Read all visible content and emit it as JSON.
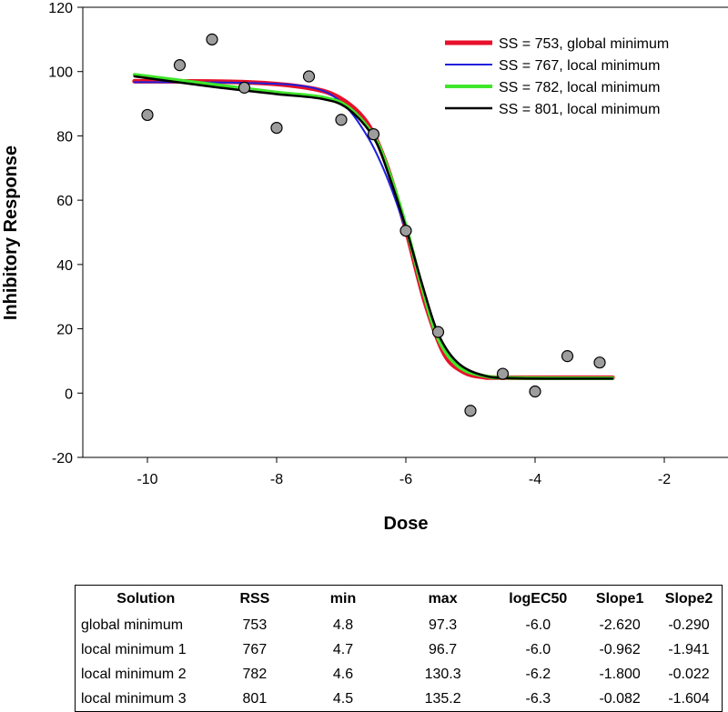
{
  "chart_data": {
    "type": "scatter",
    "xlabel": "Dose",
    "ylabel": "Inhibitory Response",
    "xlim": [
      -11,
      -1
    ],
    "ylim": [
      -20,
      120
    ],
    "x_ticks": [
      -10,
      -8,
      -6,
      -4,
      -2
    ],
    "y_ticks": [
      -20,
      0,
      20,
      40,
      60,
      80,
      100,
      120
    ],
    "legend_position": "top-right",
    "points": {
      "x": [
        -10,
        -9.5,
        -9,
        -8.5,
        -8,
        -7.5,
        -7,
        -6.5,
        -6,
        -5.5,
        -5,
        -4.5,
        -4,
        -3.5,
        -3
      ],
      "y": [
        86.5,
        102,
        110,
        95,
        82.5,
        98.5,
        85,
        80.5,
        50.5,
        19,
        -5.5,
        6,
        0.5,
        11.5,
        9.5
      ]
    },
    "series": [
      {
        "name": "SS = 753, global minimum",
        "color": "#e8102a",
        "width": 5,
        "curve": [
          [
            -10.2,
            97
          ],
          [
            -8.5,
            96.7
          ],
          [
            -7.5,
            94.9
          ],
          [
            -7,
            91.5
          ],
          [
            -6.6,
            84
          ],
          [
            -6.3,
            71
          ],
          [
            -6.0,
            51
          ],
          [
            -5.7,
            28
          ],
          [
            -5.4,
            12
          ],
          [
            -5.1,
            6.5
          ],
          [
            -4.8,
            5
          ],
          [
            -4.5,
            4.8
          ],
          [
            -2.8,
            4.8
          ]
        ]
      },
      {
        "name": "SS = 767, local  minimum",
        "color": "#1f1fdd",
        "width": 2,
        "curve": [
          [
            -10.2,
            96.7
          ],
          [
            -8.5,
            96.5
          ],
          [
            -7.5,
            95.2
          ],
          [
            -7,
            90.5
          ],
          [
            -6.6,
            80
          ],
          [
            -6.3,
            67.5
          ],
          [
            -6.0,
            50.5
          ],
          [
            -5.7,
            30
          ],
          [
            -5.4,
            14
          ],
          [
            -5.1,
            7.5
          ],
          [
            -4.8,
            5.3
          ],
          [
            -4.5,
            4.8
          ],
          [
            -2.8,
            4.7
          ]
        ]
      },
      {
        "name": "SS = 782, local minimum",
        "color": "#3fe62a",
        "width": 4,
        "curve": [
          [
            -10.2,
            99
          ],
          [
            -9,
            96
          ],
          [
            -8,
            93.5
          ],
          [
            -7.3,
            92
          ],
          [
            -6.9,
            89
          ],
          [
            -6.5,
            80
          ],
          [
            -6.25,
            68
          ],
          [
            -6.0,
            52
          ],
          [
            -5.75,
            33
          ],
          [
            -5.5,
            17
          ],
          [
            -5.2,
            8.5
          ],
          [
            -4.8,
            5.4
          ],
          [
            -4.3,
            4.7
          ],
          [
            -2.8,
            4.6
          ]
        ]
      },
      {
        "name": "SS = 801, local minimum",
        "color": "#000000",
        "width": 2.5,
        "curve": [
          [
            -10.2,
            98.5
          ],
          [
            -9,
            95.3
          ],
          [
            -8,
            93
          ],
          [
            -7.3,
            91.5
          ],
          [
            -6.9,
            88.5
          ],
          [
            -6.5,
            79.5
          ],
          [
            -6.25,
            67
          ],
          [
            -6.0,
            51.5
          ],
          [
            -5.75,
            34
          ],
          [
            -5.5,
            18.5
          ],
          [
            -5.2,
            9.5
          ],
          [
            -4.8,
            5.5
          ],
          [
            -4.3,
            4.6
          ],
          [
            -2.8,
            4.5
          ]
        ]
      }
    ]
  },
  "table": {
    "headers": [
      "Solution",
      "RSS",
      "min",
      "max",
      "logEC50",
      "Slope1",
      "Slope2"
    ],
    "rows": [
      [
        "global minimum",
        "753",
        "4.8",
        "97.3",
        "-6.0",
        "-2.620",
        "-0.290"
      ],
      [
        "local minimum 1",
        "767",
        "4.7",
        "96.7",
        "-6.0",
        "-0.962",
        "-1.941"
      ],
      [
        "local minimum 2",
        "782",
        "4.6",
        "130.3",
        "-6.2",
        "-1.800",
        "-0.022"
      ],
      [
        "local minimum 3",
        "801",
        "4.5",
        "135.2",
        "-6.3",
        "-0.082",
        "-1.604"
      ]
    ]
  }
}
